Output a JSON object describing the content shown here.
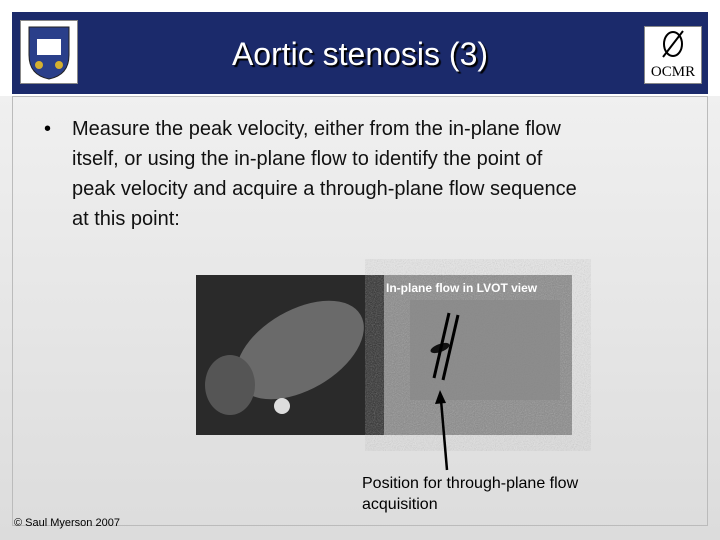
{
  "header": {
    "title": "Aortic stenosis (3)",
    "right_logo_text": "OCMR"
  },
  "bullet": {
    "lines": [
      "Measure the peak velocity, either from the in-plane flow",
      "itself, or using the in-plane flow to identify the point of",
      "peak velocity and acquire a through-plane flow sequence",
      "at this point:"
    ]
  },
  "figure": {
    "label": "In-plane flow in LVOT view",
    "caption": [
      "Position for through-plane flow",
      "acquisition"
    ]
  },
  "footer": {
    "copyright": "© Saul Myerson 2007"
  }
}
